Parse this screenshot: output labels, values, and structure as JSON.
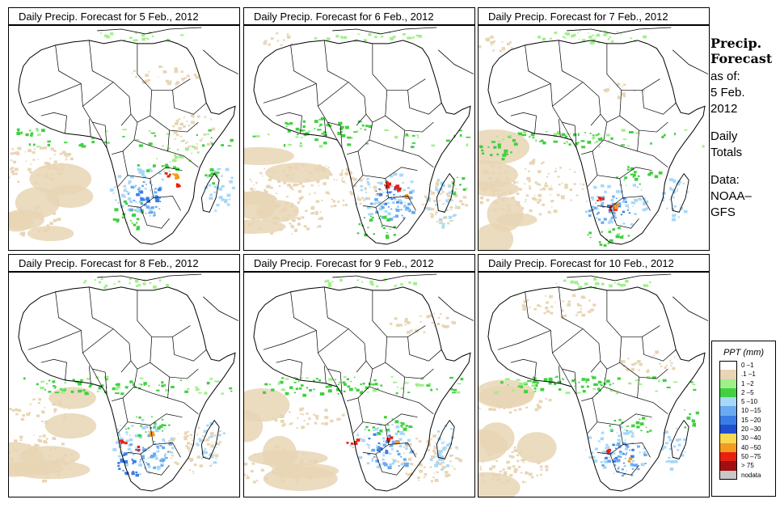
{
  "panels": [
    {
      "title": "Daily Precip. Forecast for  5 Feb., 2012"
    },
    {
      "title": "Daily Precip. Forecast for  6 Feb., 2012"
    },
    {
      "title": "Daily Precip. Forecast for  7 Feb., 2012"
    },
    {
      "title": "Daily Precip. Forecast for  8 Feb., 2012"
    },
    {
      "title": "Daily Precip. Forecast for  9 Feb., 2012"
    },
    {
      "title": "Daily Precip. Forecast for  10 Feb., 2012"
    }
  ],
  "sidebar": {
    "title_line1": "Precip.",
    "title_line2": "Forecast",
    "asof": "as of:",
    "date_line1": "5 Feb.",
    "date_line2": "2012",
    "daily_line1": "Daily",
    "daily_line2": "Totals",
    "data_line1": "Data:",
    "data_line2": "NOAA–",
    "data_line3": "GFS"
  },
  "legend": {
    "title": "PPT (mm)",
    "entries": [
      {
        "label": "0 –1",
        "color": "#ffffff"
      },
      {
        "label": ".1 –1",
        "color": "#e8d5b4"
      },
      {
        "label": "1 –2",
        "color": "#9ff08a"
      },
      {
        "label": "2 –5",
        "color": "#40d040"
      },
      {
        "label": "5 –10",
        "color": "#a8d8f8"
      },
      {
        "label": "10 –15",
        "color": "#6aaaf0"
      },
      {
        "label": "15 –20",
        "color": "#3a7ce6"
      },
      {
        "label": "20 –30",
        "color": "#1f4fd0"
      },
      {
        "label": "30 –40",
        "color": "#f8d850"
      },
      {
        "label": "40 –50",
        "color": "#f39a20"
      },
      {
        "label": "50 –75",
        "color": "#e82010"
      },
      {
        "label": "> 75",
        "color": "#a01010"
      },
      {
        "label": "nodata",
        "color": "#c8c8c8"
      }
    ]
  }
}
